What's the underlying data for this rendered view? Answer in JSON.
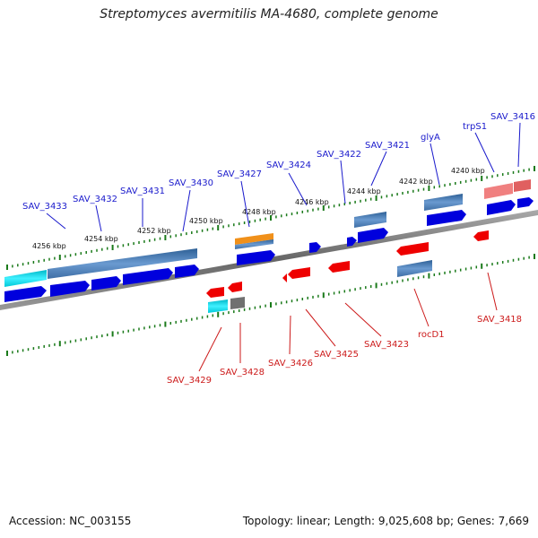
{
  "title": "Streptomyces avermitilis MA-4680, complete genome",
  "footer": {
    "accession": "Accession: NC_003155",
    "stats": "Topology: linear; Length: 9,025,608 bp; Genes: 7,669"
  },
  "scale_labels": [
    "4256 kbp",
    "4254 kbp",
    "4252 kbp",
    "4250 kbp",
    "4248 kbp",
    "4246 kbp",
    "4244 kbp",
    "4242 kbp",
    "4240 kbp"
  ],
  "top_genes": [
    "SAV_3433",
    "SAV_3432",
    "SAV_3431",
    "SAV_3430",
    "SAV_3427",
    "SAV_3424",
    "SAV_3422",
    "SAV_3421",
    "glyA",
    "trpS1",
    "SAV_3416"
  ],
  "bottom_genes": [
    "SAV_3429",
    "SAV_3428",
    "SAV_3426",
    "SAV_3425",
    "SAV_3423",
    "rocD1",
    "SAV_3418"
  ],
  "colors": {
    "forward_gene": "#0000dd",
    "reverse_gene": "#ee0000",
    "band_blue": "#4a7fb5",
    "band_cyan": "#00d8e8",
    "band_orange": "#f0901a",
    "band_pink": "#f08080",
    "band_gray": "#707070",
    "tick": "#1a7a1a",
    "axis": "#888888"
  }
}
